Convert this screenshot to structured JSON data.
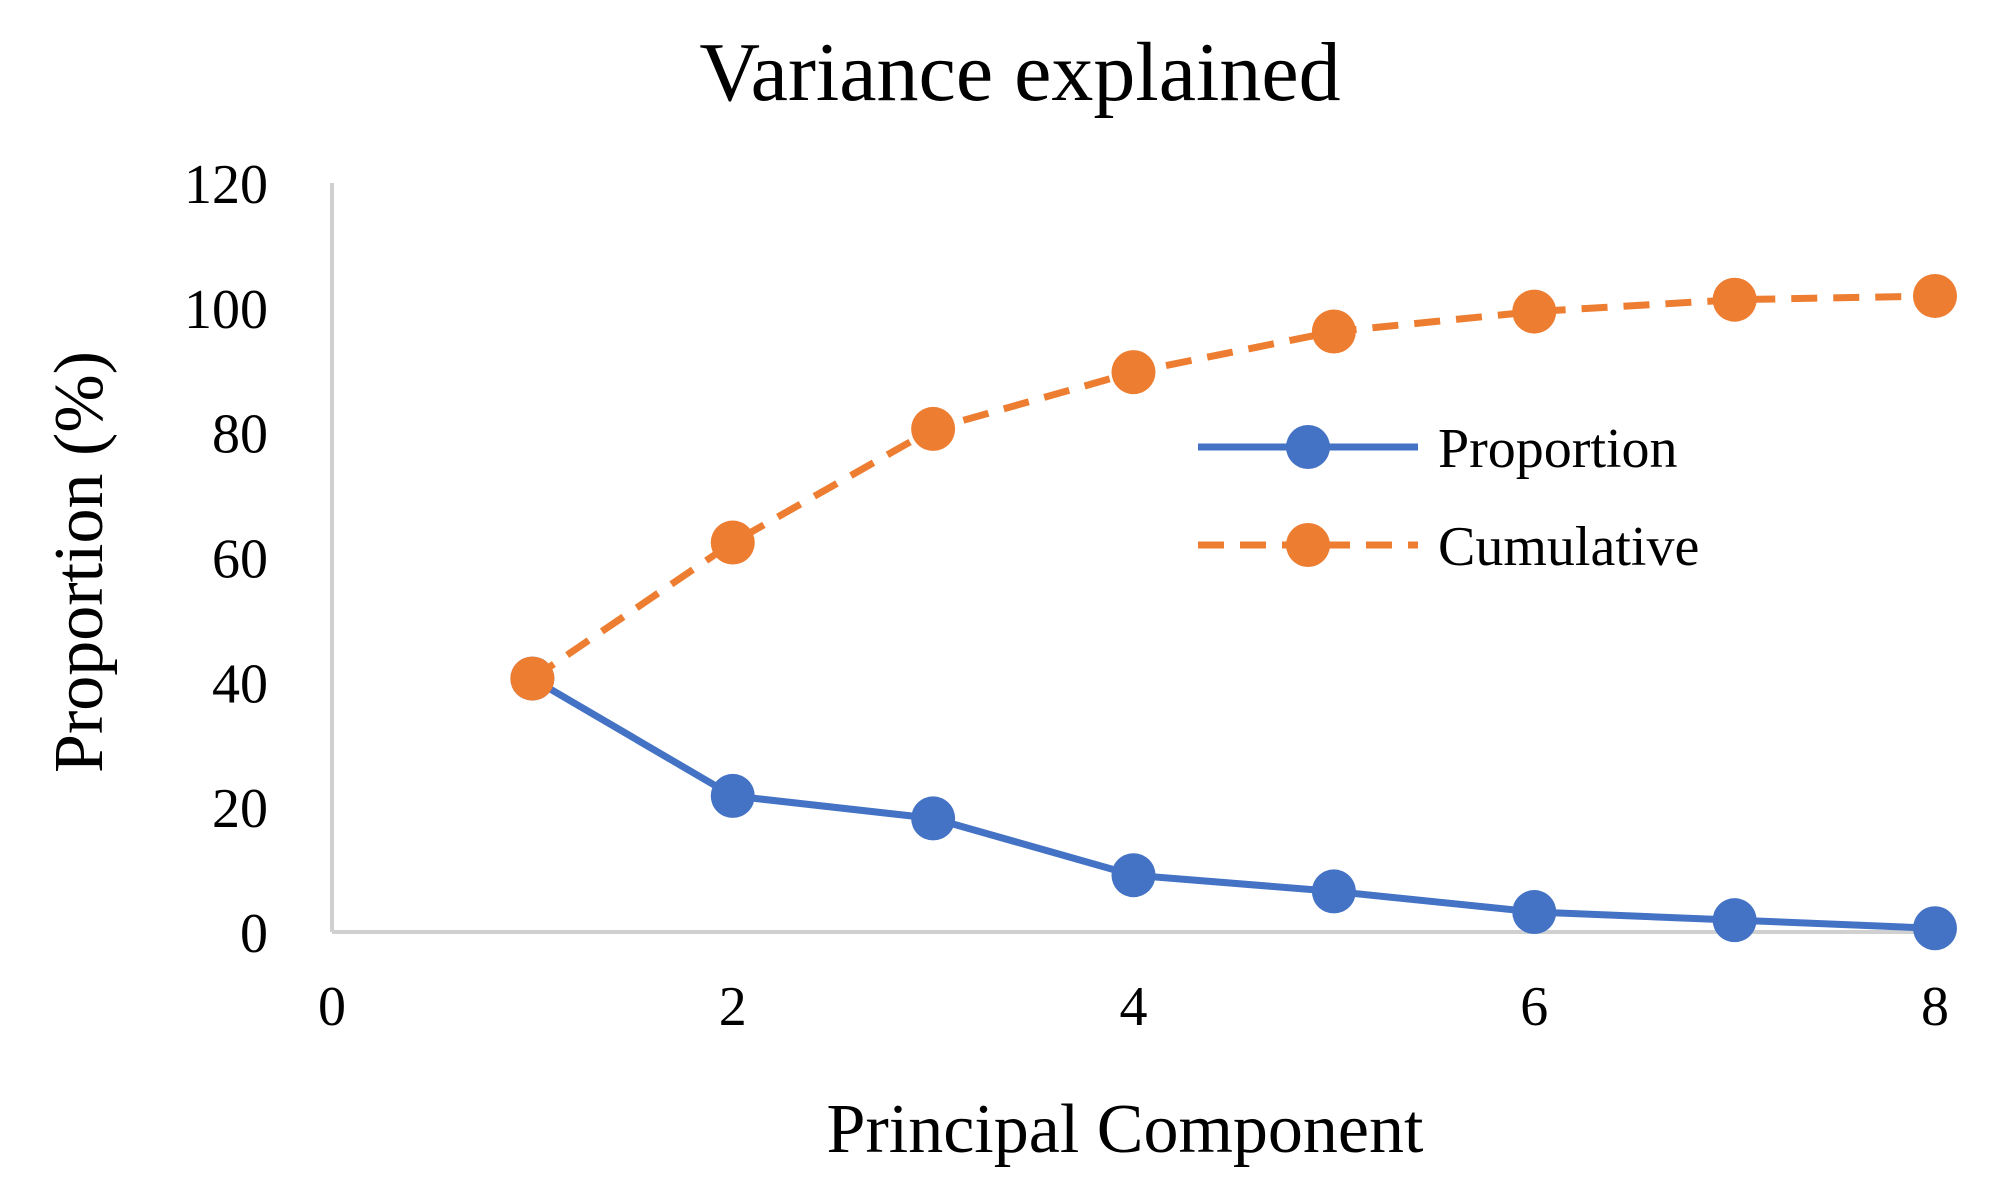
{
  "chart_data": {
    "type": "line",
    "title": "Variance explained",
    "xlabel": "Principal Component",
    "ylabel": "Proportion (%)",
    "xlim": [
      0,
      8
    ],
    "ylim": [
      0,
      120
    ],
    "x_ticks": [
      "0",
      "2",
      "4",
      "6",
      "8"
    ],
    "y_ticks": [
      "0",
      "20",
      "40",
      "60",
      "80",
      "100",
      "120"
    ],
    "grid": false,
    "legend_position": "right, upper-middle",
    "series": [
      {
        "name": "Proportion",
        "color": "#4472C4",
        "line_style": "solid",
        "marker": "circle",
        "x": [
          1,
          2,
          3,
          4,
          5,
          6,
          7,
          8
        ],
        "y": [
          40.6,
          21.8,
          18.2,
          9.1,
          6.5,
          3.2,
          1.9,
          0.6
        ]
      },
      {
        "name": "Cumulative",
        "color": "#ED7D31",
        "line_style": "dashed",
        "marker": "circle",
        "x": [
          1,
          2,
          3,
          4,
          5,
          6,
          7,
          8
        ],
        "y": [
          40.6,
          62.4,
          80.6,
          89.7,
          96.2,
          99.4,
          101.3,
          101.9
        ]
      }
    ]
  }
}
